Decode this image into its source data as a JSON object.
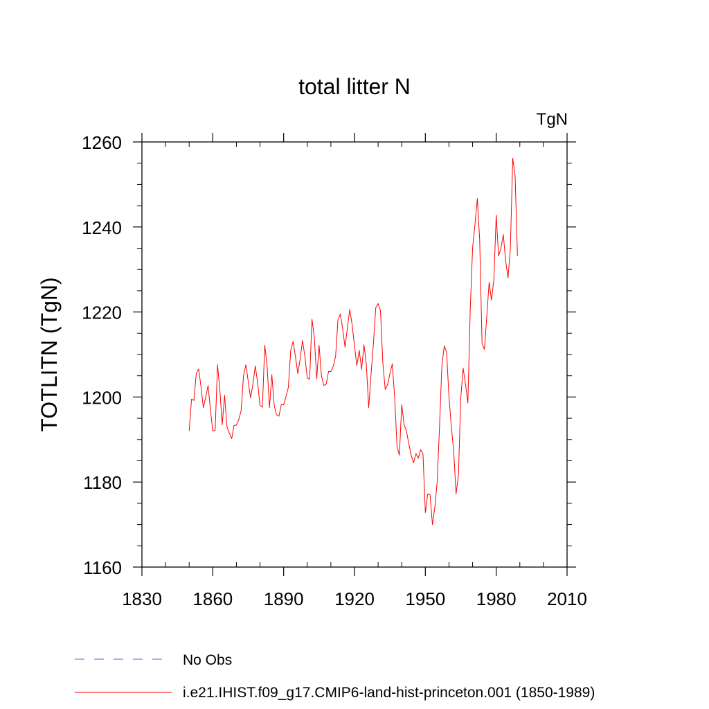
{
  "chart_data": {
    "type": "line",
    "title": "total litter N",
    "units": "TgN",
    "ylabel": "TOTLITN  (TgN)",
    "xlabel": "",
    "xlim": [
      1830,
      2010
    ],
    "ylim": [
      1160,
      1260
    ],
    "x_ticks": [
      1830,
      1860,
      1890,
      1920,
      1950,
      1980,
      2010
    ],
    "y_ticks": [
      1160,
      1180,
      1200,
      1220,
      1240,
      1260
    ],
    "x_tick_labels": [
      "1830",
      "1860",
      "1890",
      "1920",
      "1950",
      "1980",
      "2010"
    ],
    "y_tick_labels": [
      "1160",
      "1180",
      "1200",
      "1220",
      "1240",
      "1260"
    ],
    "x_minor_step": 10,
    "y_minor_step": 5,
    "grid": false,
    "legend_position": "bottom",
    "legend": [
      {
        "label": "No Obs",
        "color": "#6a5acd",
        "dash": "dashed"
      },
      {
        "label": "i.e21.IHIST.f09_g17.CMIP6-land-hist-princeton.001 (1850-1989)",
        "color": "#ff0000",
        "dash": "solid"
      }
    ],
    "series": [
      {
        "name": "i.e21.IHIST.f09_g17.CMIP6-land-hist-princeton.001 (1850-1989)",
        "color": "#ff0000",
        "x_start": 1850,
        "x_step": 1,
        "values": [
          1192.0,
          1199.5,
          1199.2,
          1205.5,
          1206.6,
          1202.5,
          1197.5,
          1200.0,
          1202.7,
          1197.0,
          1192.0,
          1192.2,
          1207.6,
          1201.5,
          1193.5,
          1200.4,
          1193.0,
          1191.5,
          1190.2,
          1193.3,
          1193.4,
          1194.7,
          1196.8,
          1205.0,
          1207.6,
          1203.7,
          1199.8,
          1203.1,
          1207.3,
          1203.3,
          1198.0,
          1197.6,
          1212.2,
          1207.3,
          1197.5,
          1205.3,
          1198.0,
          1195.8,
          1195.5,
          1198.2,
          1198.2,
          1200.1,
          1202.3,
          1211.0,
          1213.1,
          1209.5,
          1205.5,
          1209.0,
          1213.3,
          1209.5,
          1204.5,
          1204.2,
          1218.3,
          1214.0,
          1204.3,
          1212.2,
          1205.0,
          1202.7,
          1203.0,
          1206.0,
          1206.0,
          1207.2,
          1209.6,
          1218.2,
          1219.5,
          1216.0,
          1211.7,
          1216.3,
          1220.6,
          1217.0,
          1212.0,
          1207.4,
          1211.0,
          1206.5,
          1212.3,
          1207.8,
          1197.5,
          1205.2,
          1212.5,
          1221.0,
          1222.0,
          1220.3,
          1208.0,
          1201.8,
          1202.9,
          1205.5,
          1207.8,
          1200.0,
          1188.5,
          1186.3,
          1198.2,
          1193.5,
          1192.0,
          1189.0,
          1186.3,
          1184.5,
          1186.7,
          1185.6,
          1187.6,
          1186.6,
          1172.8,
          1177.2,
          1177.0,
          1170.0,
          1174.0,
          1180.0,
          1193.0,
          1207.4,
          1212.0,
          1210.5,
          1200.0,
          1193.0,
          1187.3,
          1177.2,
          1181.5,
          1199.8,
          1206.8,
          1203.0,
          1198.6,
          1220.5,
          1235.0,
          1240.6,
          1246.7,
          1237.0,
          1212.7,
          1211.2,
          1218.8,
          1227.0,
          1222.8,
          1227.6,
          1242.8,
          1233.2,
          1235.0,
          1238.2,
          1232.0,
          1228.0,
          1235.0,
          1256.2,
          1252.0,
          1233.2
        ]
      }
    ]
  }
}
